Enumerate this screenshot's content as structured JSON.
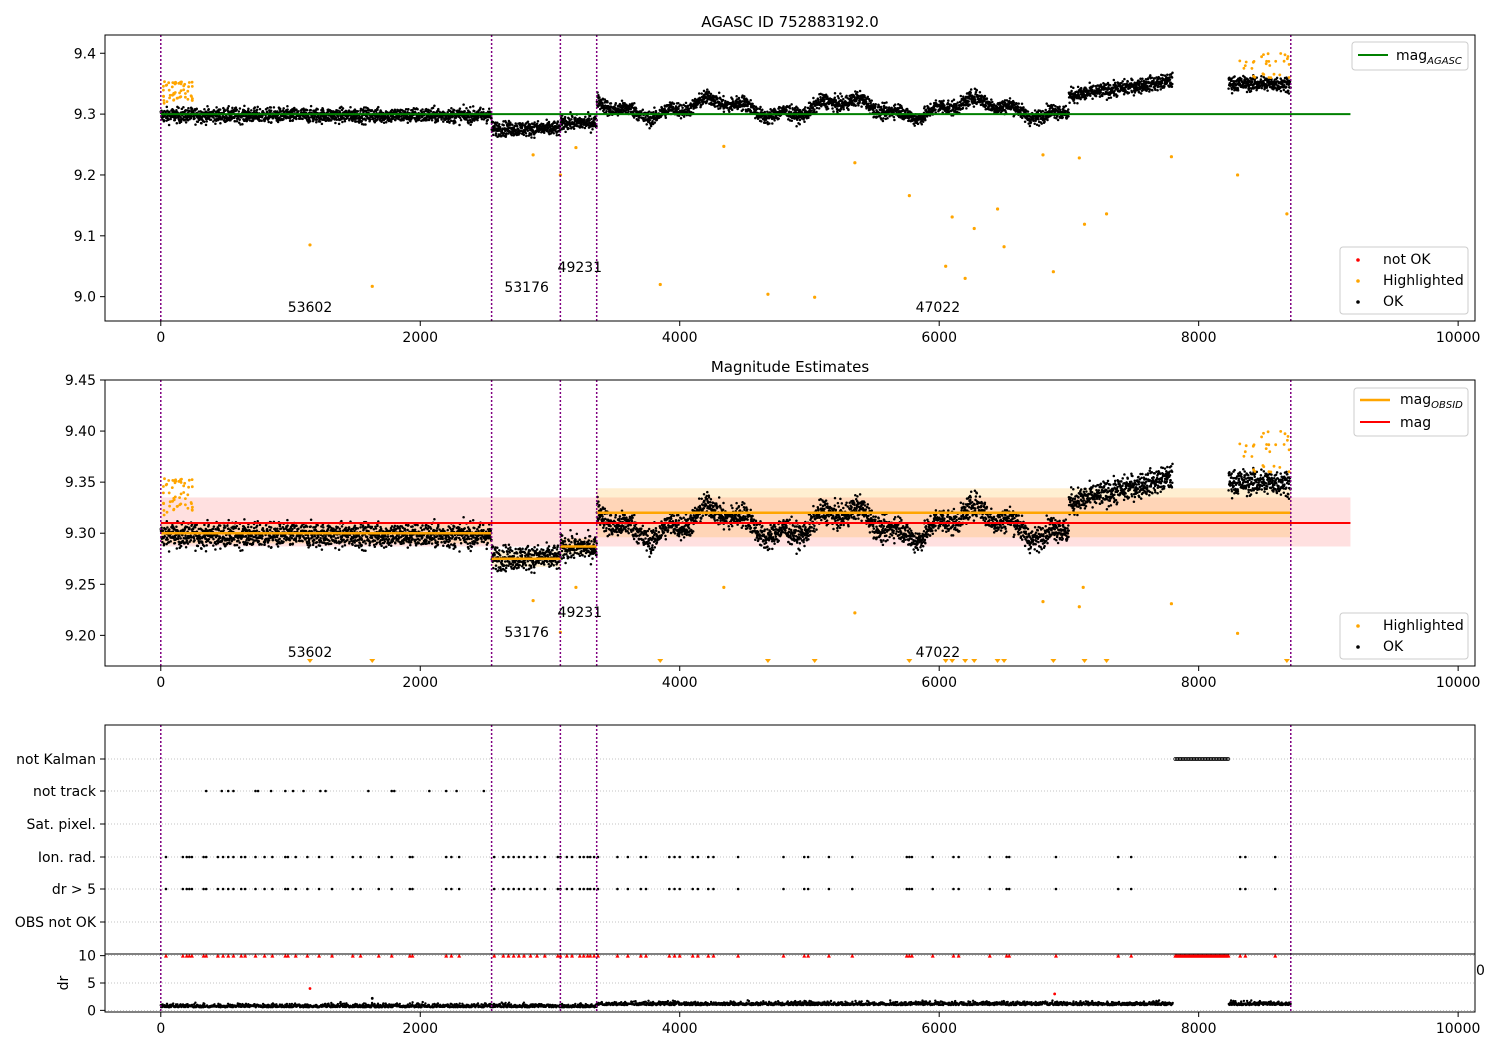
{
  "figure": {
    "obsid_labels": [
      {
        "text": "53602",
        "x": 1150
      },
      {
        "text": "53176",
        "x": 2820
      },
      {
        "text": "49231",
        "x": 3230
      },
      {
        "text": "47022",
        "x": 5990
      }
    ]
  },
  "chart_data": [
    {
      "type": "scatter",
      "title": "AGASC ID 752883192.0",
      "xlim": [
        -430,
        10130
      ],
      "ylim": [
        8.96,
        9.43
      ],
      "xticks": [
        "0",
        "2000",
        "4000",
        "6000",
        "8000",
        "10000"
      ],
      "yticks": [
        "9.0",
        "9.1",
        "9.2",
        "9.3",
        "9.4"
      ],
      "obsid_boundaries": [
        0,
        2550,
        3080,
        3360,
        8710
      ],
      "reference_line": {
        "value": 9.3,
        "x_range": [
          0,
          9170
        ],
        "color": "#008000"
      },
      "legend_upper": [
        {
          "label": "mag",
          "subscript": "AGASC",
          "color": "#008000"
        }
      ],
      "legend_lower": [
        {
          "label": "not OK",
          "color": "#ff0000"
        },
        {
          "label": "Highlighted",
          "color": "#ffa500"
        },
        {
          "label": "OK",
          "color": "#000000"
        }
      ],
      "outliers": [
        [
          1150,
          9.085
        ],
        [
          1630,
          9.017
        ],
        [
          3850,
          9.02
        ],
        [
          4680,
          9.004
        ],
        [
          5040,
          8.999
        ],
        [
          5770,
          9.166
        ],
        [
          6050,
          9.05
        ],
        [
          6100,
          9.131
        ],
        [
          6200,
          9.03
        ],
        [
          6270,
          9.112
        ],
        [
          6450,
          9.144
        ],
        [
          6500,
          9.082
        ],
        [
          6880,
          9.041
        ],
        [
          7120,
          9.119
        ],
        [
          7290,
          9.136
        ],
        [
          8680,
          9.136
        ],
        [
          5350,
          9.22
        ],
        [
          6800,
          9.233
        ],
        [
          7080,
          9.228
        ],
        [
          7790,
          9.23
        ],
        [
          8300,
          9.2
        ],
        [
          3080,
          9.2
        ],
        [
          2870,
          9.233
        ],
        [
          4340,
          9.247
        ],
        [
          3200,
          9.245
        ]
      ]
    },
    {
      "type": "scatter",
      "title": "Magnitude Estimates",
      "xlim": [
        -430,
        10130
      ],
      "ylim": [
        9.17,
        9.45
      ],
      "xticks": [
        "0",
        "2000",
        "4000",
        "6000",
        "8000",
        "10000"
      ],
      "yticks": [
        "9.20",
        "9.25",
        "9.30",
        "9.35",
        "9.40",
        "9.45"
      ],
      "obsid_boundaries": [
        0,
        2550,
        3080,
        3360,
        8710
      ],
      "mag": {
        "value": 9.31,
        "band": [
          9.287,
          9.335
        ],
        "x_range": [
          0,
          9170
        ],
        "color": "#ff0000"
      },
      "mag_obsid": [
        {
          "x_range": [
            0,
            2550
          ],
          "value": 9.3,
          "band": [
            9.29,
            9.31
          ]
        },
        {
          "x_range": [
            2550,
            3080
          ],
          "value": 9.275,
          "band": [
            9.267,
            9.283
          ]
        },
        {
          "x_range": [
            3080,
            3360
          ],
          "value": 9.287,
          "band": [
            9.279,
            9.295
          ]
        },
        {
          "x_range": [
            3360,
            8710
          ],
          "value": 9.32,
          "band": [
            9.296,
            9.344
          ]
        }
      ],
      "legend_upper": [
        {
          "label": "mag",
          "subscript": "OBSID",
          "color": "#ffa500"
        },
        {
          "label": "mag",
          "subscript": "",
          "color": "#ff0000"
        }
      ],
      "legend_lower": [
        {
          "label": "Highlighted",
          "color": "#ffa500"
        },
        {
          "label": "OK",
          "color": "#000000"
        }
      ],
      "clipped_x": [
        1150,
        1630,
        3850,
        4680,
        5040,
        5770,
        6050,
        6100,
        6200,
        6270,
        6450,
        6500,
        6880,
        7120,
        7290,
        8680
      ],
      "outliers": [
        [
          5350,
          9.222
        ],
        [
          6800,
          9.233
        ],
        [
          7080,
          9.228
        ],
        [
          7790,
          9.231
        ],
        [
          8300,
          9.202
        ],
        [
          3080,
          9.203
        ],
        [
          2870,
          9.234
        ],
        [
          4340,
          9.247
        ],
        [
          3200,
          9.247
        ],
        [
          7110,
          9.247
        ]
      ]
    },
    {
      "type": "scatter",
      "title": "",
      "xlim": [
        -430,
        10130
      ],
      "xticks": [
        "0",
        "2000",
        "4000",
        "6000",
        "8000",
        "10000"
      ],
      "obsid_boundaries": [
        0,
        2550,
        3080,
        3360,
        8710
      ],
      "flag_rows": [
        "not Kalman",
        "not track",
        "Sat. pixel.",
        "Ion. rad.",
        "dr > 5",
        "OBS not OK"
      ],
      "not_kalman_x_range": [
        7820,
        8230
      ],
      "not_track_x": [
        350,
        470,
        520,
        560,
        730,
        750,
        850,
        960,
        1020,
        1100,
        1230,
        1270,
        1600,
        1780,
        1800,
        2070,
        2200,
        2280,
        2490
      ],
      "ion_rad_x": [
        40,
        170,
        200,
        220,
        240,
        330,
        350,
        440,
        480,
        520,
        560,
        620,
        650,
        730,
        800,
        860,
        960,
        980,
        1040,
        1130,
        1220,
        1320,
        1480,
        1540,
        1680,
        1780,
        1920,
        1940,
        2200,
        2240,
        2300,
        2570,
        2640,
        2680,
        2720,
        2760,
        2800,
        2850,
        2900,
        2960,
        3060,
        3080,
        3130,
        3170,
        3230,
        3260,
        3290,
        3310,
        3340,
        3370,
        3520,
        3600,
        3700,
        3740,
        3920,
        3960,
        4000,
        4100,
        4140,
        4220,
        4260,
        4450,
        4800,
        4960,
        4990,
        5150,
        5330,
        5750,
        5770,
        5790,
        5950,
        6110,
        6150,
        6390,
        6520,
        6540,
        6900,
        7380,
        7480,
        8320,
        8360,
        8590
      ],
      "dr_x_range": [
        0,
        8710
      ],
      "dr_ylim": [
        -0.3,
        10.3
      ],
      "dr_yticks": [
        "0",
        "5",
        "10"
      ],
      "dr_ylabel": "dr",
      "dr_extra_x": [
        1150,
        6890,
        1630
      ],
      "axis_label_10": "0"
    }
  ]
}
